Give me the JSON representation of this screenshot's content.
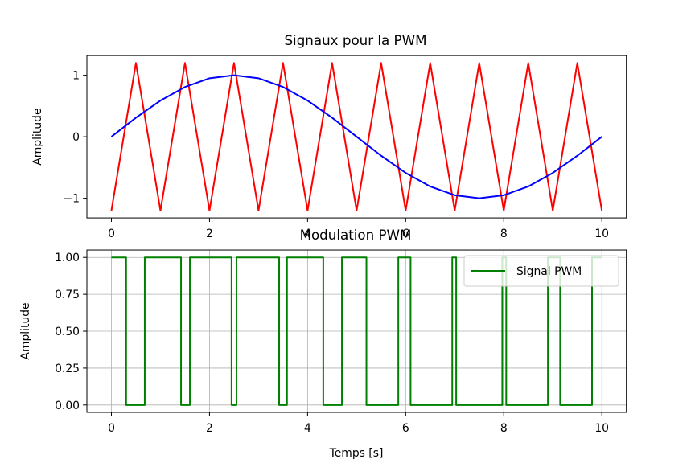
{
  "chart_data": [
    {
      "type": "line",
      "title": "Signaux pour la PWM",
      "xlabel": "",
      "ylabel": "Amplitude",
      "xlim": [
        -0.5,
        10.5
      ],
      "ylim": [
        -1.32,
        1.32
      ],
      "xticks": [
        0,
        2,
        4,
        6,
        8,
        10
      ],
      "yticks": [
        -1,
        0,
        1
      ],
      "ytick_labels": [
        "−1",
        "0",
        "1"
      ],
      "grid": false,
      "legend": null,
      "series": [
        {
          "color": "#ff0000",
          "kind": "triangle",
          "x": [
            0,
            0.5,
            1,
            1.5,
            2,
            2.5,
            3,
            3.5,
            4,
            4.5,
            5,
            5.5,
            6,
            6.5,
            7,
            7.5,
            8,
            8.5,
            9,
            9.5,
            10
          ],
          "y": [
            -1.2,
            1.2,
            -1.2,
            1.2,
            -1.2,
            1.2,
            -1.2,
            1.2,
            -1.2,
            1.2,
            -1.2,
            1.2,
            -1.2,
            1.2,
            -1.2,
            1.2,
            -1.2,
            1.2,
            -1.2,
            1.2,
            -1.2
          ]
        },
        {
          "color": "#0000ff",
          "kind": "sine",
          "x": [
            0,
            0.5,
            1,
            1.5,
            2,
            2.5,
            3,
            3.5,
            4,
            4.5,
            5,
            5.5,
            6,
            6.5,
            7,
            7.5,
            8,
            8.5,
            9,
            9.5,
            10
          ],
          "y": [
            0,
            0.309,
            0.588,
            0.809,
            0.951,
            1,
            0.951,
            0.809,
            0.588,
            0.309,
            0,
            -0.309,
            -0.588,
            -0.809,
            -0.951,
            -1,
            -0.951,
            -0.809,
            -0.588,
            -0.309,
            0
          ]
        }
      ]
    },
    {
      "type": "line",
      "title": "Modulation PWM",
      "xlabel": "Temps [s]",
      "ylabel": "Amplitude",
      "xlim": [
        -0.5,
        10.5
      ],
      "ylim": [
        -0.05,
        1.05
      ],
      "xticks": [
        0,
        2,
        4,
        6,
        8,
        10
      ],
      "yticks": [
        0,
        0.25,
        0.5,
        0.75,
        1
      ],
      "ytick_labels": [
        "0.00",
        "0.25",
        "0.50",
        "0.75",
        "1.00"
      ],
      "grid": true,
      "legend": "top-right",
      "series": [
        {
          "name": "Signal PWM",
          "color": "#008000",
          "kind": "step",
          "x": [
            0,
            0.3,
            0.3,
            0.68,
            0.68,
            1.42,
            1.42,
            1.6,
            1.6,
            2.45,
            2.45,
            2.55,
            2.55,
            3.42,
            3.42,
            3.58,
            3.58,
            4.32,
            4.32,
            4.7,
            4.7,
            5.2,
            5.2,
            5.85,
            5.85,
            6.1,
            6.1,
            6.95,
            6.95,
            7.03,
            7.03,
            7.97,
            7.97,
            8.05,
            8.05,
            8.9,
            8.9,
            9.15,
            9.15,
            9.8,
            9.8,
            10
          ],
          "y": [
            1,
            1,
            0,
            0,
            1,
            1,
            0,
            0,
            1,
            1,
            0,
            0,
            1,
            1,
            0,
            0,
            1,
            1,
            0,
            0,
            1,
            1,
            0,
            0,
            1,
            1,
            0,
            0,
            1,
            1,
            0,
            0,
            1,
            1,
            0,
            0,
            1,
            1,
            0,
            0,
            1,
            1
          ]
        }
      ]
    }
  ]
}
